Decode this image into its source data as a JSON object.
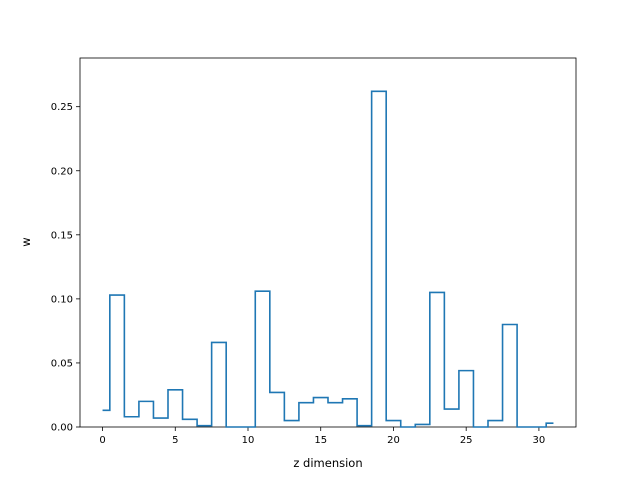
{
  "chart_data": {
    "type": "line",
    "style": "step",
    "title": "",
    "xlabel": "z dimension",
    "ylabel": "w",
    "xlim": [
      -1.55,
      32.55
    ],
    "ylim": [
      0,
      0.288
    ],
    "x_ticks": [
      0,
      5,
      10,
      15,
      20,
      25,
      30
    ],
    "y_ticks": [
      0.0,
      0.05,
      0.1,
      0.15,
      0.2,
      0.25
    ],
    "x_tick_labels": [
      "0",
      "5",
      "10",
      "15",
      "20",
      "25",
      "30"
    ],
    "y_tick_labels": [
      "0.00",
      "0.05",
      "0.10",
      "0.15",
      "0.20",
      "0.25"
    ],
    "grid": false,
    "legend": "none",
    "series": [
      {
        "color": "#1f77b4",
        "x": [
          0,
          1,
          2,
          3,
          4,
          5,
          6,
          7,
          8,
          9,
          10,
          11,
          12,
          13,
          14,
          15,
          16,
          17,
          18,
          19,
          20,
          21,
          22,
          23,
          24,
          25,
          26,
          27,
          28,
          29,
          30,
          31
        ],
        "values": [
          0.013,
          0.103,
          0.008,
          0.02,
          0.007,
          0.029,
          0.006,
          0.001,
          0.066,
          0.0,
          0.0,
          0.106,
          0.027,
          0.005,
          0.019,
          0.023,
          0.019,
          0.022,
          0.001,
          0.262,
          0.005,
          0.0,
          0.002,
          0.105,
          0.014,
          0.044,
          0.0,
          0.005,
          0.08,
          0.0,
          0.0,
          0.003
        ]
      }
    ]
  }
}
